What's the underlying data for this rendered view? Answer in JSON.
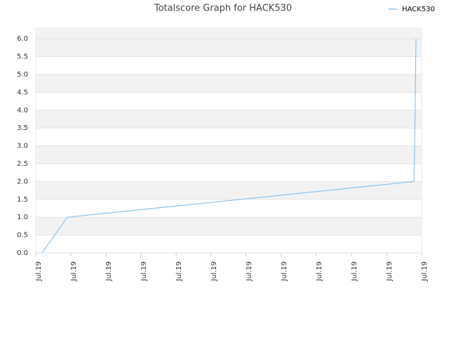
{
  "chart_data": {
    "type": "line",
    "title": "Totalscore Graph for HACK530",
    "x": [
      0.18,
      0.9,
      10.78,
      10.8,
      10.82,
      10.84
    ],
    "series": [
      {
        "name": "HACK530",
        "color": "#8fc3ea",
        "values": [
          0,
          1,
          2,
          3,
          4.5,
          6
        ]
      }
    ],
    "xlim": [
      0,
      11
    ],
    "xticks": [
      {
        "value": 0,
        "label": "Jul.19"
      },
      {
        "value": 1,
        "label": "Jul.19"
      },
      {
        "value": 2,
        "label": "Jul.19"
      },
      {
        "value": 3,
        "label": "Jul.19"
      },
      {
        "value": 4,
        "label": "Jul.19"
      },
      {
        "value": 5,
        "label": "Jul.19"
      },
      {
        "value": 6,
        "label": "Jul.19"
      },
      {
        "value": 7,
        "label": "Jul.19"
      },
      {
        "value": 8,
        "label": "Jul.19"
      },
      {
        "value": 9,
        "label": "Jul.19"
      },
      {
        "value": 10,
        "label": "Jul.19"
      },
      {
        "value": 11,
        "label": "Jul.19"
      }
    ],
    "ylim": [
      0,
      6.3
    ],
    "yticks": [
      {
        "value": 0,
        "label": "0.0"
      },
      0.5,
      {
        "value": 1,
        "label": "1.0"
      },
      1.5,
      {
        "value": 2,
        "label": "2.0"
      },
      2.5,
      {
        "value": 3,
        "label": "3.0"
      },
      3.5,
      {
        "value": 4,
        "label": "4.0"
      },
      4.5,
      {
        "value": 5,
        "label": "5.0"
      },
      5.5,
      {
        "value": 6,
        "label": "6.0"
      }
    ],
    "grid": true,
    "legend": "top-right"
  }
}
